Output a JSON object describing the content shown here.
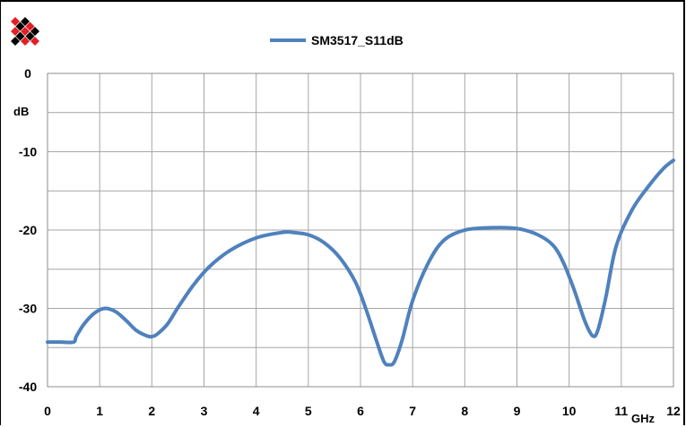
{
  "chart_data": {
    "type": "line",
    "title": "",
    "xlabel": "GHz",
    "ylabel": "dB",
    "xlim": [
      0,
      12
    ],
    "ylim": [
      -40,
      0
    ],
    "x_ticks": [
      0,
      1,
      2,
      3,
      4,
      5,
      6,
      7,
      8,
      9,
      10,
      11,
      12
    ],
    "y_ticks": [
      0,
      -10,
      -20,
      -30,
      -40
    ],
    "grid": true,
    "legend_position": "top-center",
    "series": [
      {
        "name": "SM3517_S11dB",
        "color": "#4f81bd",
        "x": [
          0,
          0.25,
          0.5,
          0.55,
          0.7,
          0.9,
          1.1,
          1.3,
          1.5,
          1.7,
          1.9,
          2.0,
          2.1,
          2.3,
          2.5,
          2.8,
          3.1,
          3.5,
          4.0,
          4.5,
          4.7,
          5.0,
          5.3,
          5.6,
          5.9,
          6.1,
          6.3,
          6.45,
          6.55,
          6.65,
          6.8,
          7.0,
          7.3,
          7.6,
          8.0,
          8.5,
          9.0,
          9.4,
          9.7,
          9.9,
          10.1,
          10.3,
          10.45,
          10.55,
          10.7,
          10.9,
          11.2,
          11.5,
          11.8,
          12.0
        ],
        "y": [
          -34.3,
          -34.3,
          -34.3,
          -33.6,
          -32.0,
          -30.6,
          -30.0,
          -30.4,
          -31.5,
          -32.8,
          -33.5,
          -33.6,
          -33.3,
          -32.0,
          -29.9,
          -27.0,
          -24.7,
          -22.6,
          -21.0,
          -20.3,
          -20.3,
          -20.6,
          -21.6,
          -23.5,
          -26.6,
          -30.0,
          -34.0,
          -36.8,
          -37.2,
          -36.8,
          -34.0,
          -29.0,
          -24.2,
          -21.3,
          -20.0,
          -19.7,
          -19.8,
          -20.6,
          -22.0,
          -24.3,
          -27.7,
          -31.6,
          -33.5,
          -32.8,
          -28.7,
          -22.1,
          -17.5,
          -14.6,
          -12.2,
          -11.1
        ]
      }
    ]
  }
}
